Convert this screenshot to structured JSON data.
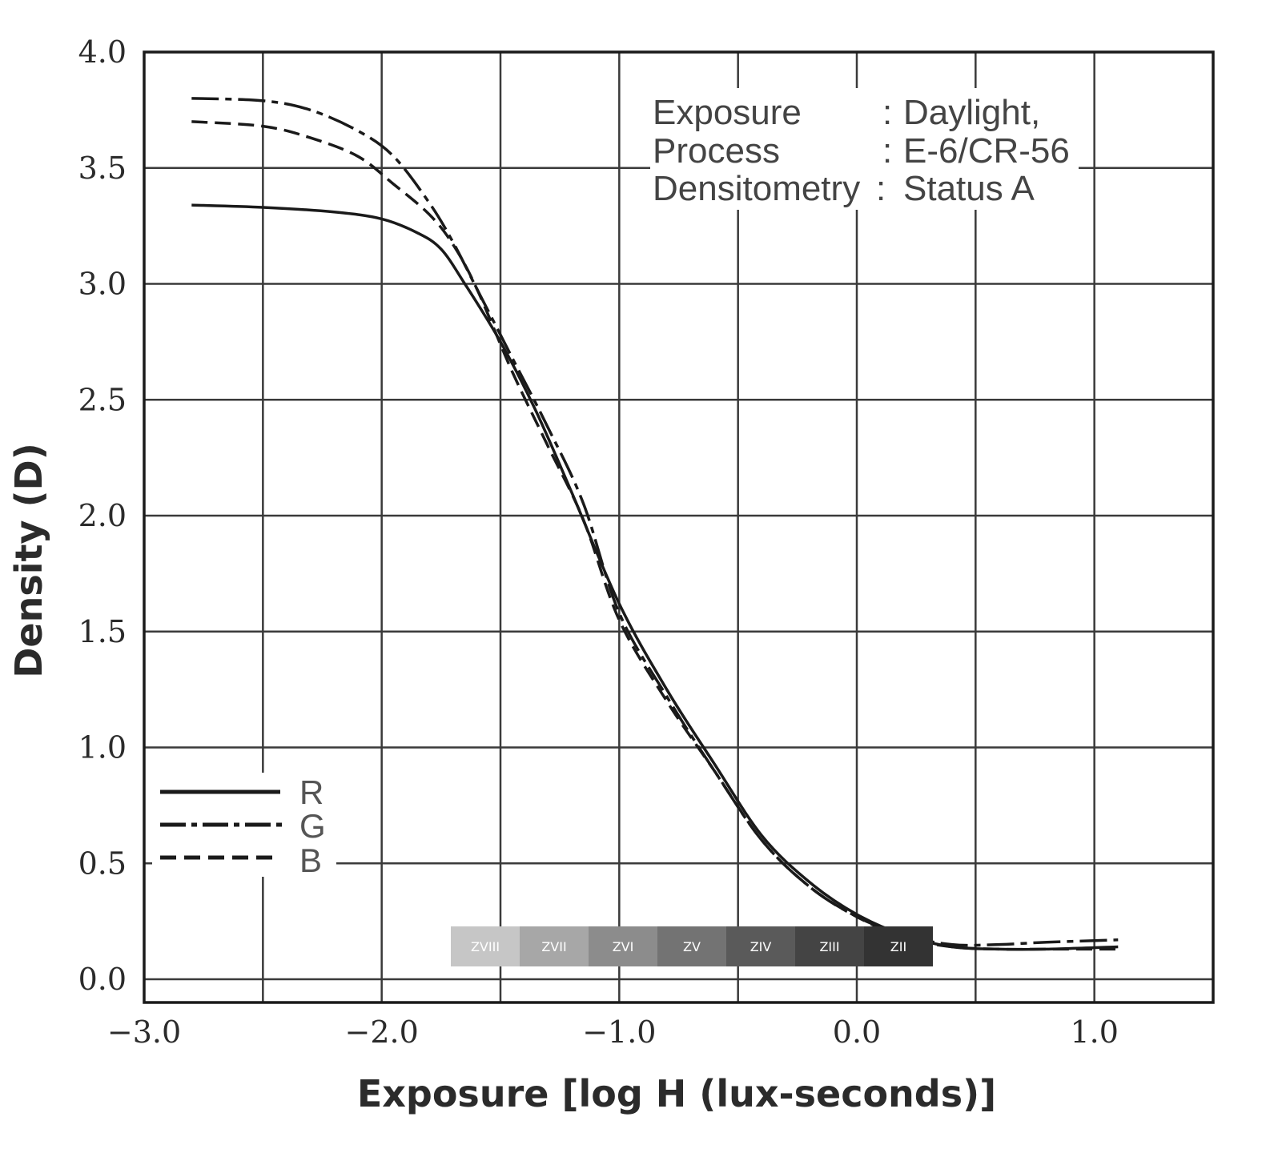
{
  "chart_data": {
    "type": "line",
    "xlabel": "Exposure [log H (lux-seconds)]",
    "ylabel": "Density (D)",
    "xlim": [
      -3.0,
      1.5
    ],
    "ylim": [
      -0.1,
      4.0
    ],
    "grid": true,
    "x_ticks": [
      {
        "value": -3.0,
        "label": "−3.0"
      },
      {
        "value": -2.5,
        "label": ""
      },
      {
        "value": -2.0,
        "label": "−2.0"
      },
      {
        "value": -1.5,
        "label": ""
      },
      {
        "value": -1.0,
        "label": "−1.0"
      },
      {
        "value": -0.5,
        "label": ""
      },
      {
        "value": 0.0,
        "label": "0.0"
      },
      {
        "value": 0.5,
        "label": ""
      },
      {
        "value": 1.0,
        "label": "1.0"
      },
      {
        "value": 1.5,
        "label": ""
      }
    ],
    "y_ticks": [
      {
        "value": 0.0,
        "label": "0.0"
      },
      {
        "value": 0.5,
        "label": "0.5"
      },
      {
        "value": 1.0,
        "label": "1.0"
      },
      {
        "value": 1.5,
        "label": "1.5"
      },
      {
        "value": 2.0,
        "label": "2.0"
      },
      {
        "value": 2.5,
        "label": "2.5"
      },
      {
        "value": 3.0,
        "label": "3.0"
      },
      {
        "value": 3.5,
        "label": "3.5"
      },
      {
        "value": 4.0,
        "label": "4.0"
      }
    ],
    "legend_position": "bottom-left",
    "series": [
      {
        "name": "R",
        "style": "solid",
        "color": "#1a1a1a",
        "points": [
          [
            -2.8,
            3.34
          ],
          [
            -2.5,
            3.33
          ],
          [
            -2.2,
            3.31
          ],
          [
            -2.0,
            3.28
          ],
          [
            -1.85,
            3.22
          ],
          [
            -1.75,
            3.15
          ],
          [
            -1.65,
            3.0
          ],
          [
            -1.5,
            2.75
          ],
          [
            -1.35,
            2.45
          ],
          [
            -1.2,
            2.1
          ],
          [
            -1.0,
            1.62
          ],
          [
            -0.8,
            1.25
          ],
          [
            -0.6,
            0.93
          ],
          [
            -0.4,
            0.62
          ],
          [
            -0.2,
            0.42
          ],
          [
            0.0,
            0.28
          ],
          [
            0.2,
            0.19
          ],
          [
            0.4,
            0.14
          ],
          [
            0.6,
            0.13
          ],
          [
            0.8,
            0.13
          ],
          [
            1.1,
            0.14
          ]
        ]
      },
      {
        "name": "G",
        "style": "dash-dot",
        "color": "#1a1a1a",
        "points": [
          [
            -2.8,
            3.8
          ],
          [
            -2.5,
            3.79
          ],
          [
            -2.3,
            3.75
          ],
          [
            -2.1,
            3.66
          ],
          [
            -1.95,
            3.55
          ],
          [
            -1.8,
            3.35
          ],
          [
            -1.7,
            3.18
          ],
          [
            -1.6,
            2.98
          ],
          [
            -1.45,
            2.68
          ],
          [
            -1.3,
            2.38
          ],
          [
            -1.15,
            2.05
          ],
          [
            -1.0,
            1.58
          ],
          [
            -0.8,
            1.22
          ],
          [
            -0.6,
            0.9
          ],
          [
            -0.4,
            0.6
          ],
          [
            -0.2,
            0.4
          ],
          [
            0.0,
            0.27
          ],
          [
            0.2,
            0.19
          ],
          [
            0.4,
            0.15
          ],
          [
            0.6,
            0.15
          ],
          [
            0.8,
            0.16
          ],
          [
            1.1,
            0.17
          ]
        ]
      },
      {
        "name": "B",
        "style": "dashed",
        "color": "#1a1a1a",
        "points": [
          [
            -2.8,
            3.7
          ],
          [
            -2.5,
            3.68
          ],
          [
            -2.3,
            3.63
          ],
          [
            -2.1,
            3.55
          ],
          [
            -1.95,
            3.43
          ],
          [
            -1.8,
            3.3
          ],
          [
            -1.7,
            3.17
          ],
          [
            -1.6,
            2.98
          ],
          [
            -1.45,
            2.62
          ],
          [
            -1.3,
            2.3
          ],
          [
            -1.15,
            1.98
          ],
          [
            -1.0,
            1.55
          ],
          [
            -0.8,
            1.2
          ],
          [
            -0.6,
            0.9
          ],
          [
            -0.4,
            0.6
          ],
          [
            -0.2,
            0.4
          ],
          [
            0.0,
            0.27
          ],
          [
            0.2,
            0.18
          ],
          [
            0.4,
            0.14
          ],
          [
            0.6,
            0.13
          ],
          [
            0.8,
            0.13
          ],
          [
            1.1,
            0.13
          ]
        ]
      }
    ],
    "annotation": {
      "rows": [
        {
          "key": "Exposure",
          "sep": ":",
          "value": "Daylight,"
        },
        {
          "key": "Process",
          "sep": ":",
          "value": "E-6/CR-56"
        },
        {
          "key": "Densitometry",
          "sep": ":",
          "value": "Status A"
        }
      ]
    },
    "zone_scale": [
      {
        "label": "ZVIII",
        "color": "#c6c6c6"
      },
      {
        "label": "ZVII",
        "color": "#a7a7a7"
      },
      {
        "label": "ZVI",
        "color": "#8c8c8c"
      },
      {
        "label": "ZV",
        "color": "#737373"
      },
      {
        "label": "ZIV",
        "color": "#5a5a5a"
      },
      {
        "label": "ZIII",
        "color": "#444444"
      },
      {
        "label": "ZII",
        "color": "#333333"
      }
    ]
  }
}
